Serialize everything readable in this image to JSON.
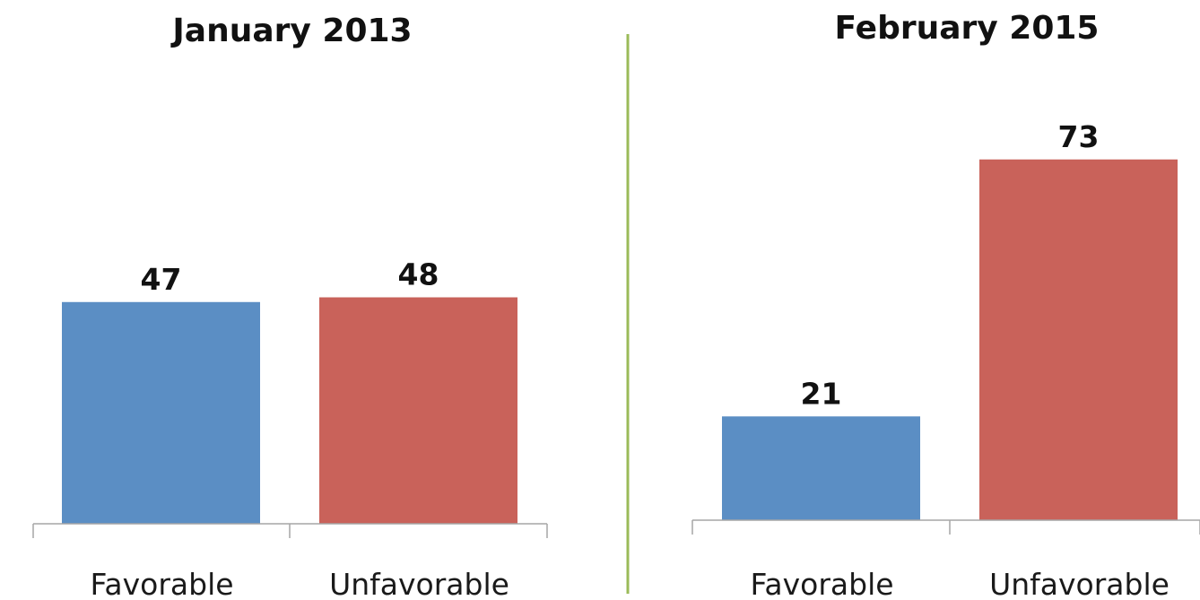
{
  "chart_data": [
    {
      "type": "bar",
      "title": "January 2013",
      "categories": [
        "Favorable",
        "Unfavorable"
      ],
      "values": [
        47,
        48
      ],
      "data_labels": [
        "47",
        "48"
      ],
      "colors": [
        "#5b8ec4",
        "#c9625a"
      ],
      "ylim": [
        0,
        100
      ]
    },
    {
      "type": "bar",
      "title": "February 2015",
      "categories": [
        "Favorable",
        "Unfavorable"
      ],
      "values": [
        21,
        73
      ],
      "data_labels": [
        "21",
        "73"
      ],
      "colors": [
        "#5b8ec4",
        "#c9625a"
      ],
      "ylim": [
        0,
        100
      ]
    }
  ],
  "divider_color": "#9bbb59"
}
